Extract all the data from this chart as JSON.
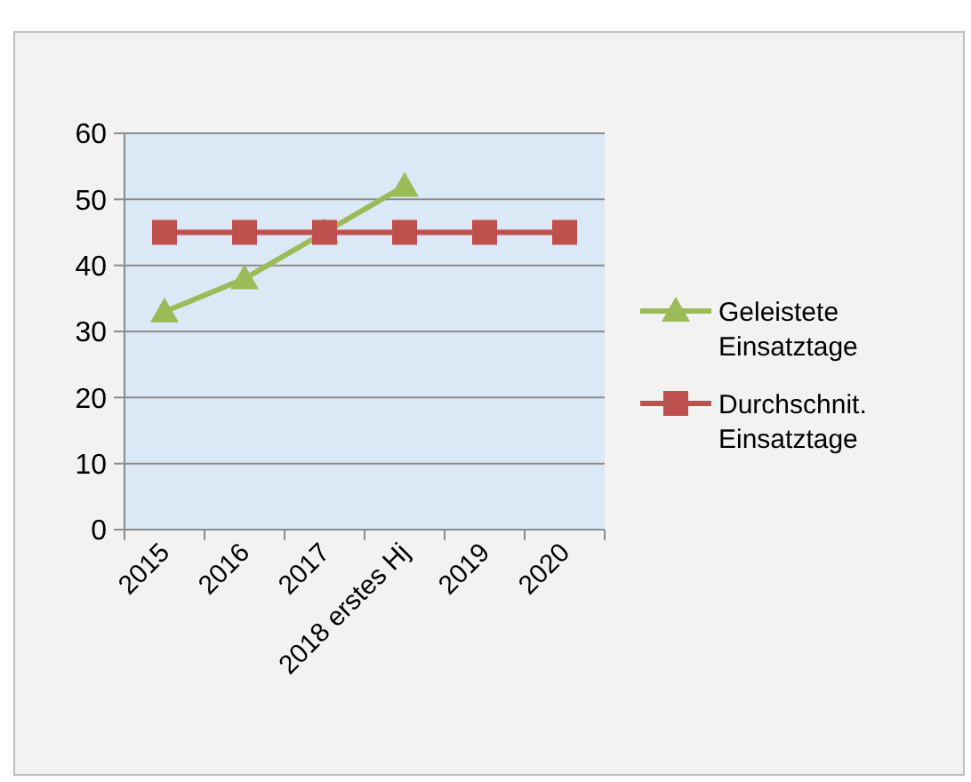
{
  "chart_data": {
    "type": "line",
    "categories": [
      "2015",
      "2016",
      "2017",
      "2018 erstes Hj",
      "2019",
      "2020"
    ],
    "series": [
      {
        "name": "Geleistete Einsatztage",
        "color": "#9bbb59",
        "values": [
          33,
          38,
          45,
          52,
          null,
          null
        ],
        "marker": "triangle"
      },
      {
        "name": "Durchschnit. Einsatztage",
        "color": "#c0504d",
        "values": [
          45,
          45,
          45,
          45,
          45,
          45
        ],
        "marker": "square"
      }
    ],
    "ylim": [
      0,
      60
    ],
    "yticks": [
      0,
      10,
      20,
      30,
      40,
      50,
      60
    ],
    "grid": "y",
    "legend": "right",
    "line_style": "solid"
  }
}
